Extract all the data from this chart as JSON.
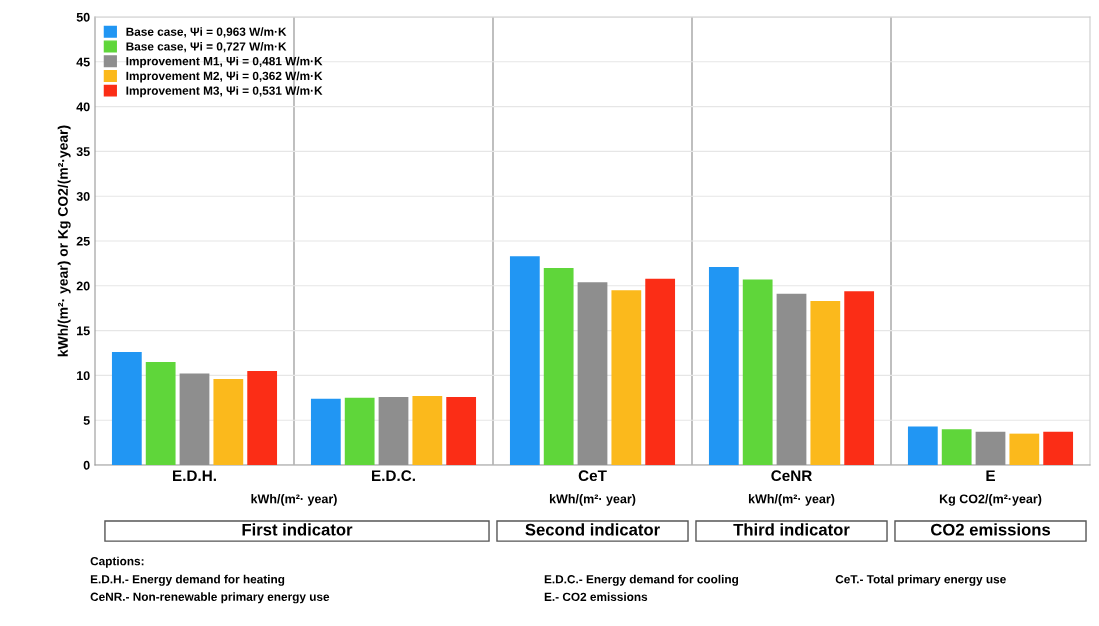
{
  "chart_data": {
    "type": "bar",
    "ylabel": "kWh/(m²· year) or Kg CO2/(m²·year)",
    "categories": [
      "E.D.H.",
      "E.D.C.",
      "CeT",
      "CeNR",
      "E"
    ],
    "series": [
      {
        "name": "Base case, Ψi = 0,963 W/m·K",
        "color": "#2196f3",
        "values": [
          12.6,
          7.4,
          23.3,
          22.1,
          4.3
        ]
      },
      {
        "name": "Base case, Ψi = 0,727 W/m·K",
        "color": "#5fd63a",
        "values": [
          11.5,
          7.5,
          22.0,
          20.7,
          4.0
        ]
      },
      {
        "name": "Improvement M1, Ψi = 0,481 W/m·K",
        "color": "#8e8e8e",
        "values": [
          10.2,
          7.6,
          20.4,
          19.1,
          3.7
        ]
      },
      {
        "name": "Improvement M2, Ψi = 0,362 W/m·K",
        "color": "#fbb91c",
        "values": [
          9.6,
          7.7,
          19.5,
          18.3,
          3.5
        ]
      },
      {
        "name": "Improvement M3, Ψi = 0,531 W/m·K",
        "color": "#fb2d16",
        "values": [
          10.5,
          7.6,
          20.8,
          19.4,
          3.7
        ]
      }
    ],
    "ylim": [
      0,
      50
    ],
    "yticks": [
      0,
      5,
      10,
      15,
      20,
      25,
      30,
      35,
      40,
      45,
      50
    ],
    "grid": "y",
    "legend": "top left",
    "annotations": [
      "kWh/(m²· year)",
      "kWh/(m²· year)",
      "kWh/(m²· year)",
      "Kg CO2/(m²·year)",
      "First indicator",
      "Second indicator",
      "Third indicator",
      "CO2 emissions",
      "Captions:",
      "E.D.H.- Energy demand for heating",
      "E.D.C.- Energy demand for cooling",
      "CeT.- Total primary energy use",
      "CeNR.- Non-renewable primary energy use",
      "E.- CO2 emissions"
    ]
  }
}
